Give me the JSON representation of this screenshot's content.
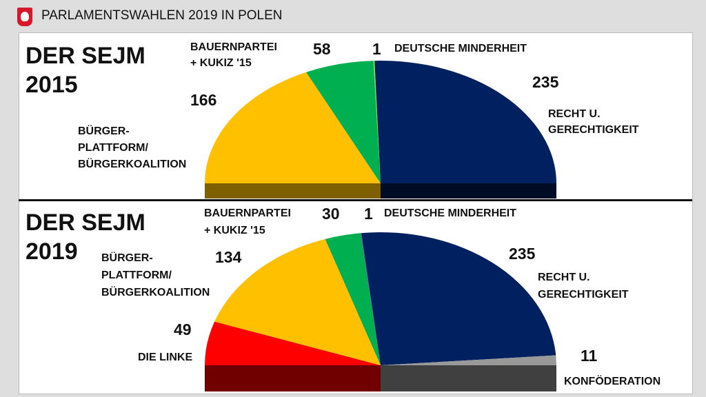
{
  "header": {
    "title": "PARLAMENTSWAHLEN 2019 IN POLEN",
    "icon": "polish-eagle-emblem"
  },
  "chart_data": [
    {
      "type": "pie",
      "subtype": "semicircle",
      "title_line1": "DER SEJM",
      "title_line2": "2015",
      "slices": [
        {
          "label_lines": [
            "BÜRGER-",
            "PLATTFORM/",
            "BÜRGERKOALITION"
          ],
          "value": 166,
          "color": "#ffc000",
          "base_color": "#7f6000"
        },
        {
          "label_lines": [
            "BAUERNPARTEI",
            "+ KUKIZ '15"
          ],
          "value": 58,
          "color": "#00b050"
        },
        {
          "label_lines": [
            "DEUTSCHE MINDERHEIT"
          ],
          "value": 1,
          "color": "#92d050"
        },
        {
          "label_lines": [
            "RECHT U.",
            "GERECHTIGKEIT"
          ],
          "value": 235,
          "color": "#002060",
          "base_color": "#000c24"
        }
      ]
    },
    {
      "type": "pie",
      "subtype": "semicircle",
      "title_line1": "DER SEJM",
      "title_line2": "2019",
      "slices": [
        {
          "label_lines": [
            "DIE LINKE"
          ],
          "value": 49,
          "color": "#ff0000",
          "base_color": "#700000"
        },
        {
          "label_lines": [
            "BÜRGER-",
            "PLATTFORM/",
            "BÜRGERKOALITION"
          ],
          "value": 134,
          "color": "#ffc000"
        },
        {
          "label_lines": [
            "BAUERNPARTEI",
            "+ KUKIZ '15"
          ],
          "value": 30,
          "color": "#00b050"
        },
        {
          "label_lines": [
            "DEUTSCHE MINDERHEIT"
          ],
          "value": 1,
          "color": "#3a6f8f"
        },
        {
          "label_lines": [
            "RECHT U.",
            "GERECHTIGKEIT"
          ],
          "value": 235,
          "color": "#002060",
          "base_color": "#404040"
        },
        {
          "label_lines": [
            "KONFÖDERATION"
          ],
          "value": 11,
          "color": "#999999"
        }
      ]
    }
  ]
}
